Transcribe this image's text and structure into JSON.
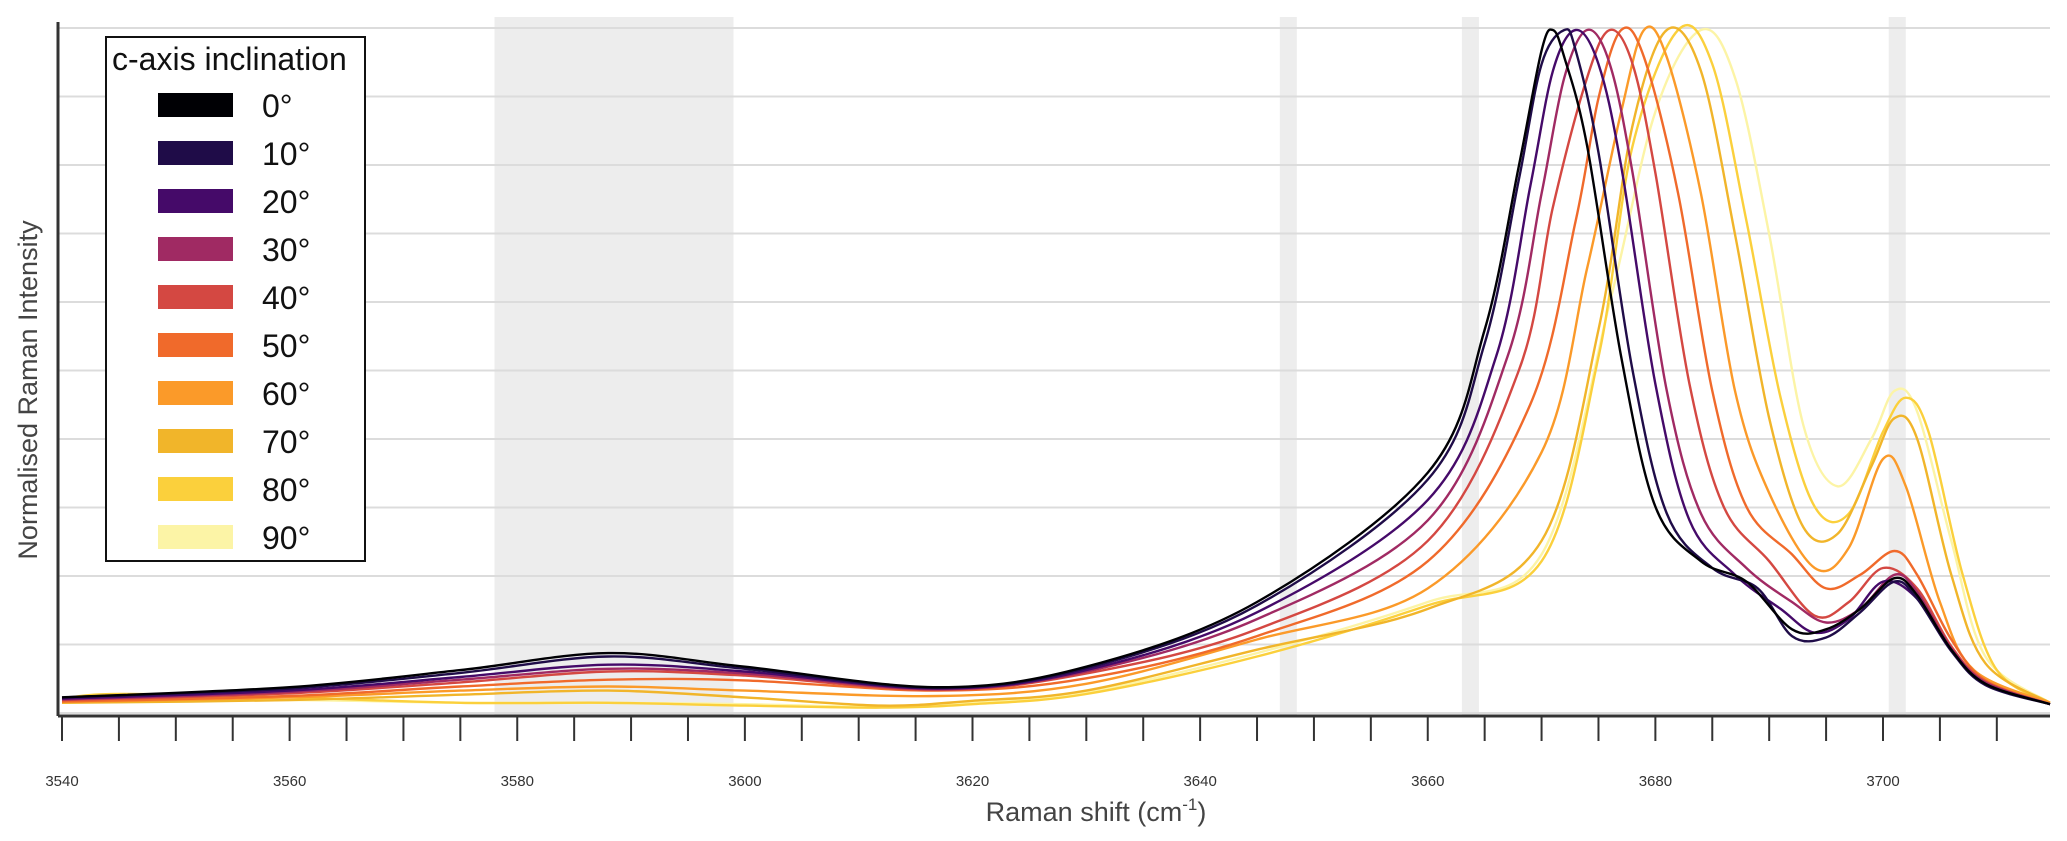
{
  "chart_data": {
    "type": "line",
    "title": "",
    "xlabel": "Raman shift (cm",
    "xlabel_superscript": "-1",
    "xlabel_suffix": ")",
    "ylabel": "Normalised Raman Intensity",
    "xlim": [
      3540,
      3715
    ],
    "ylim": [
      0,
      1
    ],
    "x_ticks": [
      3540,
      3560,
      3580,
      3600,
      3620,
      3640,
      3660,
      3680,
      3700
    ],
    "x_tick_labels": [
      "3540",
      "3560",
      "3580",
      "3600",
      "3620",
      "3640",
      "3660",
      "3680",
      "3700"
    ],
    "y_tick_labels_visible": false,
    "grid": "horizontal",
    "shaded_regions": [
      [
        3578,
        3599
      ],
      [
        3647,
        3648.5
      ],
      [
        3663,
        3664.5
      ],
      [
        3700.5,
        3702
      ]
    ],
    "legend": {
      "title": "c-axis inclination",
      "placement": "top-left"
    },
    "series": [
      {
        "name": "0°",
        "color": "#000004",
        "values": [
          [
            3540,
            0.02
          ],
          [
            3560,
            0.035
          ],
          [
            3575,
            0.06
          ],
          [
            3588,
            0.085
          ],
          [
            3600,
            0.065
          ],
          [
            3617,
            0.035
          ],
          [
            3630,
            0.065
          ],
          [
            3645,
            0.16
          ],
          [
            3660,
            0.35
          ],
          [
            3665,
            0.56
          ],
          [
            3668,
            0.8
          ],
          [
            3670,
            0.97
          ],
          [
            3671,
            1.0
          ],
          [
            3672,
            0.96
          ],
          [
            3674,
            0.83
          ],
          [
            3677,
            0.52
          ],
          [
            3680,
            0.3
          ],
          [
            3684,
            0.22
          ],
          [
            3688,
            0.19
          ],
          [
            3692,
            0.12
          ],
          [
            3695,
            0.12
          ],
          [
            3698,
            0.15
          ],
          [
            3701,
            0.195
          ],
          [
            3703,
            0.17
          ],
          [
            3706,
            0.09
          ],
          [
            3709,
            0.04
          ],
          [
            3715,
            0.01
          ]
        ]
      },
      {
        "name": "10°",
        "color": "#1f0c48",
        "values": [
          [
            3540,
            0.02
          ],
          [
            3560,
            0.033
          ],
          [
            3575,
            0.056
          ],
          [
            3588,
            0.08
          ],
          [
            3600,
            0.062
          ],
          [
            3617,
            0.034
          ],
          [
            3630,
            0.063
          ],
          [
            3645,
            0.155
          ],
          [
            3660,
            0.34
          ],
          [
            3665,
            0.54
          ],
          [
            3668,
            0.78
          ],
          [
            3670,
            0.95
          ],
          [
            3672,
            1.0
          ],
          [
            3673,
            0.97
          ],
          [
            3675,
            0.82
          ],
          [
            3678,
            0.5
          ],
          [
            3681,
            0.29
          ],
          [
            3685,
            0.21
          ],
          [
            3689,
            0.18
          ],
          [
            3692,
            0.11
          ],
          [
            3695,
            0.108
          ],
          [
            3698,
            0.145
          ],
          [
            3701,
            0.19
          ],
          [
            3703,
            0.165
          ],
          [
            3706,
            0.088
          ],
          [
            3709,
            0.038
          ],
          [
            3715,
            0.01
          ]
        ]
      },
      {
        "name": "20°",
        "color": "#450a69",
        "values": [
          [
            3540,
            0.018
          ],
          [
            3560,
            0.03
          ],
          [
            3575,
            0.05
          ],
          [
            3588,
            0.068
          ],
          [
            3600,
            0.058
          ],
          [
            3617,
            0.033
          ],
          [
            3630,
            0.06
          ],
          [
            3645,
            0.145
          ],
          [
            3660,
            0.31
          ],
          [
            3666,
            0.52
          ],
          [
            3669,
            0.77
          ],
          [
            3671,
            0.94
          ],
          [
            3673,
            1.0
          ],
          [
            3675,
            0.95
          ],
          [
            3677,
            0.8
          ],
          [
            3680,
            0.48
          ],
          [
            3683,
            0.28
          ],
          [
            3687,
            0.2
          ],
          [
            3691,
            0.15
          ],
          [
            3694,
            0.115
          ],
          [
            3697,
            0.135
          ],
          [
            3700,
            0.19
          ],
          [
            3703,
            0.165
          ],
          [
            3706,
            0.09
          ],
          [
            3709,
            0.04
          ],
          [
            3715,
            0.01
          ]
        ]
      },
      {
        "name": "30°",
        "color": "#a02a63",
        "values": [
          [
            3540,
            0.017
          ],
          [
            3560,
            0.028
          ],
          [
            3575,
            0.046
          ],
          [
            3588,
            0.062
          ],
          [
            3600,
            0.055
          ],
          [
            3617,
            0.032
          ],
          [
            3630,
            0.058
          ],
          [
            3645,
            0.135
          ],
          [
            3660,
            0.28
          ],
          [
            3667,
            0.52
          ],
          [
            3670,
            0.76
          ],
          [
            3672,
            0.93
          ],
          [
            3674,
            1.0
          ],
          [
            3676,
            0.95
          ],
          [
            3678,
            0.79
          ],
          [
            3681,
            0.47
          ],
          [
            3684,
            0.29
          ],
          [
            3688,
            0.21
          ],
          [
            3692,
            0.16
          ],
          [
            3695,
            0.13
          ],
          [
            3698,
            0.15
          ],
          [
            3701,
            0.2
          ],
          [
            3703,
            0.175
          ],
          [
            3706,
            0.092
          ],
          [
            3709,
            0.042
          ],
          [
            3715,
            0.01
          ]
        ]
      },
      {
        "name": "40°",
        "color": "#d44842",
        "values": [
          [
            3540,
            0.016
          ],
          [
            3560,
            0.026
          ],
          [
            3575,
            0.042
          ],
          [
            3588,
            0.058
          ],
          [
            3600,
            0.052
          ],
          [
            3617,
            0.031
          ],
          [
            3630,
            0.055
          ],
          [
            3645,
            0.12
          ],
          [
            3660,
            0.25
          ],
          [
            3668,
            0.5
          ],
          [
            3671,
            0.74
          ],
          [
            3674,
            0.93
          ],
          [
            3676,
            1.0
          ],
          [
            3678,
            0.95
          ],
          [
            3680,
            0.79
          ],
          [
            3683,
            0.48
          ],
          [
            3686,
            0.3
          ],
          [
            3690,
            0.22
          ],
          [
            3694,
            0.14
          ],
          [
            3697,
            0.16
          ],
          [
            3700,
            0.21
          ],
          [
            3703,
            0.18
          ],
          [
            3706,
            0.095
          ],
          [
            3709,
            0.043
          ],
          [
            3715,
            0.01
          ]
        ]
      },
      {
        "name": "50°",
        "color": "#f06a2b",
        "values": [
          [
            3540,
            0.014
          ],
          [
            3560,
            0.022
          ],
          [
            3575,
            0.036
          ],
          [
            3588,
            0.046
          ],
          [
            3600,
            0.045
          ],
          [
            3617,
            0.03
          ],
          [
            3630,
            0.048
          ],
          [
            3645,
            0.11
          ],
          [
            3660,
            0.22
          ],
          [
            3669,
            0.45
          ],
          [
            3673,
            0.72
          ],
          [
            3675,
            0.9
          ],
          [
            3677,
            1.0
          ],
          [
            3679,
            0.96
          ],
          [
            3682,
            0.76
          ],
          [
            3685,
            0.47
          ],
          [
            3688,
            0.3
          ],
          [
            3692,
            0.23
          ],
          [
            3695,
            0.18
          ],
          [
            3698,
            0.2
          ],
          [
            3701,
            0.235
          ],
          [
            3703,
            0.2
          ],
          [
            3706,
            0.105
          ],
          [
            3709,
            0.045
          ],
          [
            3715,
            0.01
          ]
        ]
      },
      {
        "name": "60°",
        "color": "#fb9a29",
        "values": [
          [
            3540,
            0.013
          ],
          [
            3560,
            0.02
          ],
          [
            3575,
            0.03
          ],
          [
            3588,
            0.036
          ],
          [
            3600,
            0.03
          ],
          [
            3617,
            0.022
          ],
          [
            3630,
            0.04
          ],
          [
            3645,
            0.105
          ],
          [
            3660,
            0.18
          ],
          [
            3670,
            0.38
          ],
          [
            3674,
            0.65
          ],
          [
            3677,
            0.88
          ],
          [
            3679,
            1.0
          ],
          [
            3681,
            0.96
          ],
          [
            3684,
            0.76
          ],
          [
            3687,
            0.47
          ],
          [
            3690,
            0.32
          ],
          [
            3694,
            0.21
          ],
          [
            3697,
            0.24
          ],
          [
            3700,
            0.37
          ],
          [
            3702,
            0.33
          ],
          [
            3705,
            0.16
          ],
          [
            3708,
            0.06
          ],
          [
            3715,
            0.012
          ]
        ]
      },
      {
        "name": "70°",
        "color": "#f1b52a",
        "values": [
          [
            3540,
            0.012
          ],
          [
            3560,
            0.016
          ],
          [
            3575,
            0.024
          ],
          [
            3588,
            0.03
          ],
          [
            3600,
            0.02
          ],
          [
            3612,
            0.008
          ],
          [
            3620,
            0.015
          ],
          [
            3630,
            0.03
          ],
          [
            3645,
            0.09
          ],
          [
            3660,
            0.15
          ],
          [
            3670,
            0.25
          ],
          [
            3675,
            0.56
          ],
          [
            3678,
            0.86
          ],
          [
            3681,
            1.0
          ],
          [
            3684,
            0.94
          ],
          [
            3687,
            0.7
          ],
          [
            3690,
            0.43
          ],
          [
            3693,
            0.27
          ],
          [
            3696,
            0.26
          ],
          [
            3699,
            0.36
          ],
          [
            3701,
            0.43
          ],
          [
            3703,
            0.4
          ],
          [
            3706,
            0.2
          ],
          [
            3709,
            0.07
          ],
          [
            3715,
            0.012
          ]
        ]
      },
      {
        "name": "80°",
        "color": "#fbd03c",
        "values": [
          [
            3540,
            0.018
          ],
          [
            3545,
            0.025
          ],
          [
            3560,
            0.02
          ],
          [
            3575,
            0.012
          ],
          [
            3588,
            0.012
          ],
          [
            3600,
            0.008
          ],
          [
            3612,
            0.005
          ],
          [
            3620,
            0.01
          ],
          [
            3630,
            0.025
          ],
          [
            3645,
            0.08
          ],
          [
            3660,
            0.155
          ],
          [
            3670,
            0.22
          ],
          [
            3675,
            0.52
          ],
          [
            3678,
            0.83
          ],
          [
            3682,
            1.0
          ],
          [
            3685,
            0.95
          ],
          [
            3688,
            0.72
          ],
          [
            3691,
            0.46
          ],
          [
            3694,
            0.3
          ],
          [
            3697,
            0.29
          ],
          [
            3700,
            0.41
          ],
          [
            3702,
            0.46
          ],
          [
            3704,
            0.41
          ],
          [
            3707,
            0.2
          ],
          [
            3710,
            0.06
          ],
          [
            3715,
            0.012
          ]
        ]
      },
      {
        "name": "90°",
        "color": "#fcf4a6",
        "values": [
          [
            3540,
            0.014
          ],
          [
            3560,
            0.016
          ],
          [
            3575,
            0.012
          ],
          [
            3588,
            0.012
          ],
          [
            3600,
            0.01
          ],
          [
            3612,
            0.006
          ],
          [
            3620,
            0.012
          ],
          [
            3630,
            0.028
          ],
          [
            3645,
            0.085
          ],
          [
            3660,
            0.16
          ],
          [
            3670,
            0.23
          ],
          [
            3676,
            0.6
          ],
          [
            3680,
            0.88
          ],
          [
            3684,
            1.0
          ],
          [
            3687,
            0.93
          ],
          [
            3690,
            0.7
          ],
          [
            3693,
            0.42
          ],
          [
            3696,
            0.33
          ],
          [
            3699,
            0.4
          ],
          [
            3701,
            0.47
          ],
          [
            3703,
            0.44
          ],
          [
            3706,
            0.25
          ],
          [
            3709,
            0.08
          ],
          [
            3715,
            0.012
          ]
        ]
      }
    ]
  }
}
